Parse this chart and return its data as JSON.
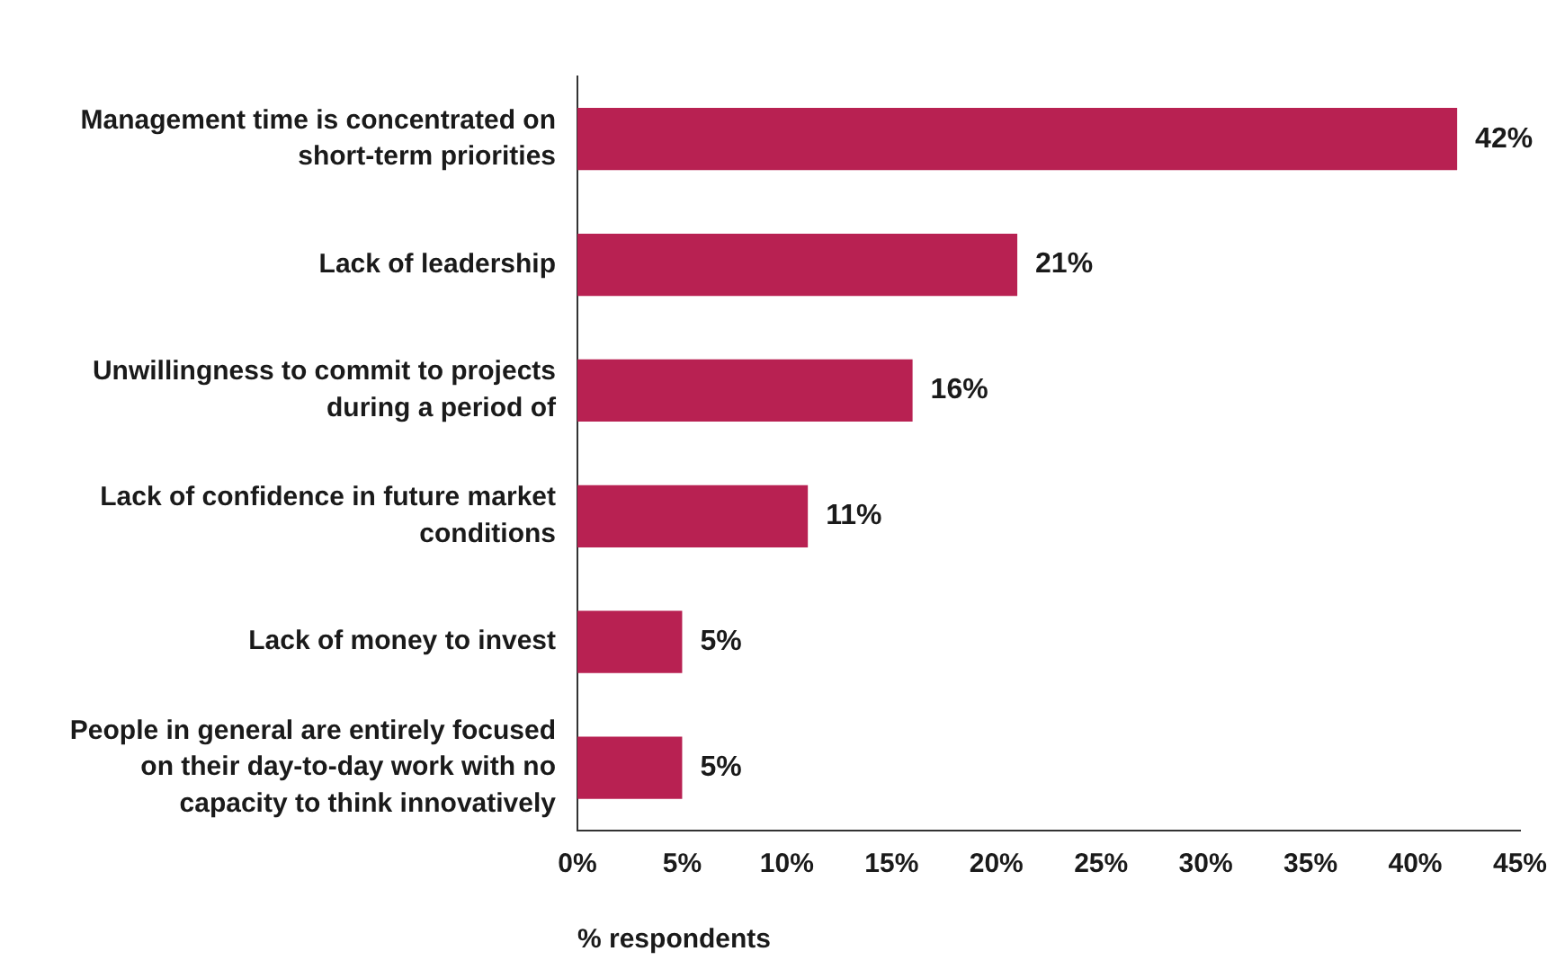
{
  "chart_data": {
    "type": "bar",
    "orientation": "horizontal",
    "categories": [
      "Management time is concentrated on short-term priorities",
      "Lack of leadership",
      "Unwillingness to commit to projects during a period of",
      "Lack of confidence in future market conditions",
      "Lack of money to invest",
      "People in general are entirely focused on their day-to-day work with no capacity to think innovatively"
    ],
    "values": [
      42,
      21,
      16,
      11,
      5,
      5
    ],
    "value_labels": [
      "42%",
      "21%",
      "16%",
      "11%",
      "5%",
      "5%"
    ],
    "color": "#b82152",
    "xlim": [
      0,
      45
    ],
    "xticks": [
      {
        "value": 0,
        "label": "0%"
      },
      {
        "value": 5,
        "label": "5%"
      },
      {
        "value": 10,
        "label": "10%"
      },
      {
        "value": 15,
        "label": "15%"
      },
      {
        "value": 20,
        "label": "20%"
      },
      {
        "value": 25,
        "label": "25%"
      },
      {
        "value": 30,
        "label": "30%"
      },
      {
        "value": 35,
        "label": "35%"
      },
      {
        "value": 40,
        "label": "40%"
      },
      {
        "value": 45,
        "label": "45%"
      }
    ],
    "xlabel": "% respondents",
    "grid": false,
    "legend": false
  }
}
